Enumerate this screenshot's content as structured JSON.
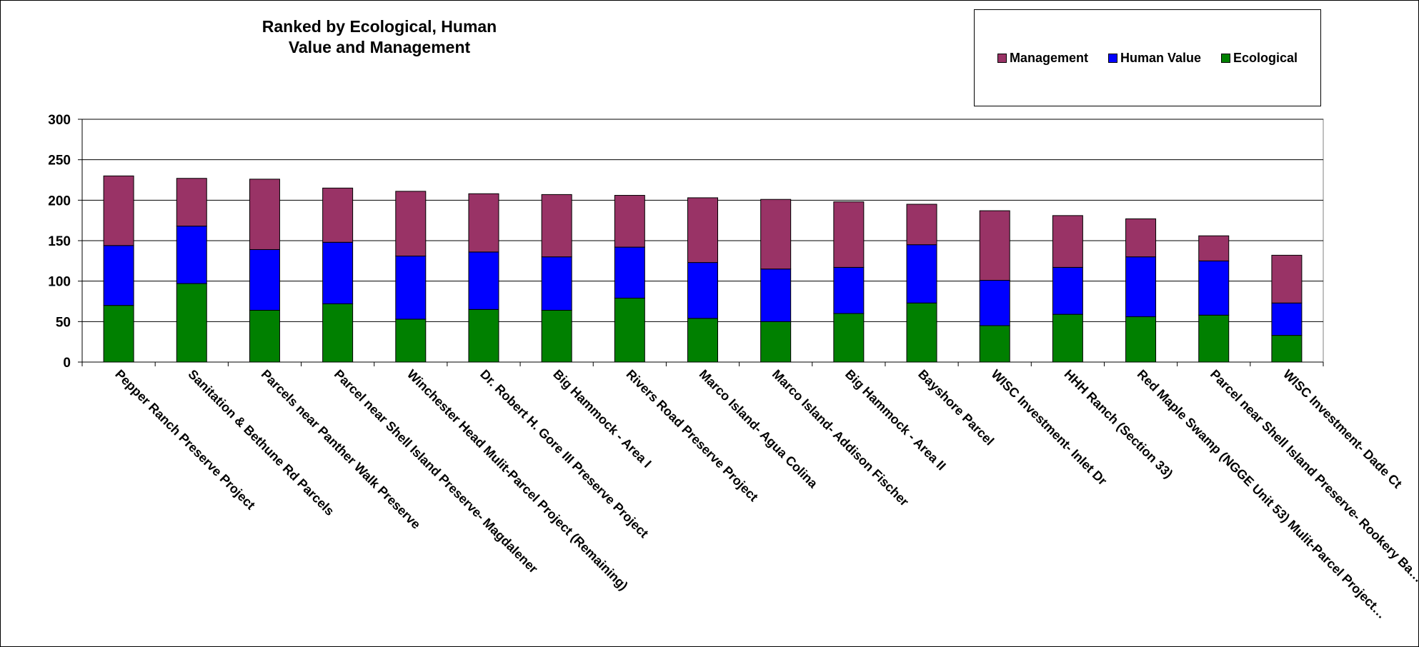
{
  "chart_data": {
    "type": "bar",
    "stacked": true,
    "title": [
      "Ranked by Ecological, Human",
      "Value and Management"
    ],
    "ylim": [
      0,
      300
    ],
    "yticks": [
      0,
      50,
      100,
      150,
      200,
      250,
      300
    ],
    "grid": true,
    "legend_position": "top-right",
    "categories": [
      "Pepper Ranch Preserve Project",
      "Sanitation & Bethune Rd Parcels",
      "Parcels near Panther Walk Preserve",
      "Parcel near Shell Island Preserve- Magdalener",
      "Winchester Head Mulit-Parcel Project (Remaining)",
      "Dr. Robert H. Gore III Preserve Project",
      "Big Hammock - Area I",
      "Rivers Road Preserve Project",
      "Marco Island- Agua Colina",
      "Marco Island- Addison Fischer",
      "Big Hammock - Area II",
      "Bayshore Parcel",
      "WISC Investment- Inlet Dr",
      "HHH Ranch (Section 33)",
      "Red Maple Swamp (NGGE Unit 53) Mulit-Parcel Project…",
      "Parcel near Shell Island Preserve- Rookery Ba…",
      "WISC Investment- Dade Ct"
    ],
    "series": [
      {
        "name": "Ecological",
        "color": "#008000",
        "values": [
          70,
          97,
          64,
          72,
          53,
          65,
          64,
          79,
          54,
          50,
          60,
          73,
          45,
          59,
          56,
          58,
          33
        ]
      },
      {
        "name": "Human Value",
        "color": "#0000ff",
        "values": [
          74,
          71,
          75,
          76,
          78,
          71,
          66,
          63,
          69,
          65,
          57,
          72,
          56,
          58,
          74,
          67,
          40
        ]
      },
      {
        "name": "Management",
        "color": "#993366",
        "values": [
          86,
          59,
          87,
          67,
          80,
          72,
          77,
          64,
          80,
          86,
          81,
          50,
          86,
          64,
          47,
          31,
          59
        ]
      }
    ]
  },
  "legend": {
    "items": [
      {
        "label": "Management",
        "color": "#993366"
      },
      {
        "label": "Human Value",
        "color": "#0000ff"
      },
      {
        "label": "Ecological",
        "color": "#008000"
      }
    ]
  }
}
